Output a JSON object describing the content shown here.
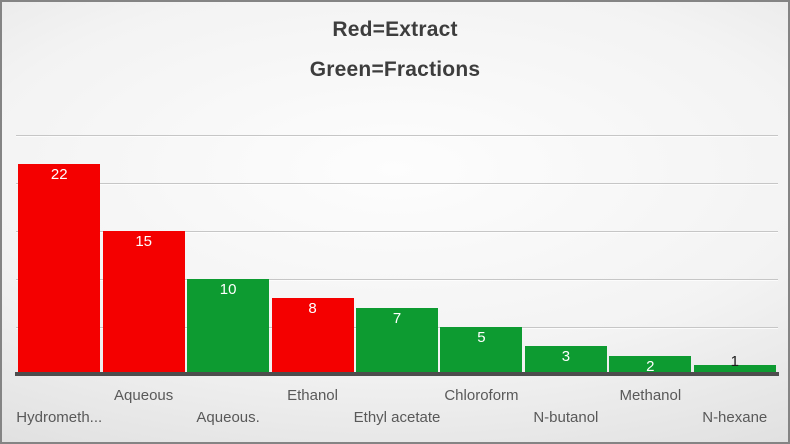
{
  "legend_header": {
    "line1": "Red=Extract",
    "line2": "Green=Fractions"
  },
  "chart_data": {
    "type": "bar",
    "title": "Red=Extract / Green=Fractions",
    "legend": [
      {
        "label": "Red=Extract",
        "series": "Extract",
        "color": "#f40000"
      },
      {
        "label": "Green=Fractions",
        "series": "Fractions",
        "color": "#0d9b31"
      }
    ],
    "legend_position": "top-center, shown as two stacked title lines",
    "categories": [
      "Hydrometh...",
      "Aqueous",
      "Aqueous.",
      "Ethanol",
      "Ethyl acetate",
      "Chloroform",
      "N-butanol",
      "Methanol",
      "N-hexane"
    ],
    "values": [
      22,
      15,
      10,
      8,
      7,
      5,
      3,
      2,
      1
    ],
    "bar_colors": [
      "#f40000",
      "#f40000",
      "#0d9b31",
      "#f40000",
      "#0d9b31",
      "#0d9b31",
      "#0d9b31",
      "#0d9b31",
      "#0d9b31"
    ],
    "value_labels": [
      "22",
      "15",
      "10",
      "8",
      "7",
      "5",
      "3",
      "2",
      "1"
    ],
    "value_label_colors": [
      "#ffffff",
      "#ffffff",
      "#ffffff",
      "#ffffff",
      "#ffffff",
      "#ffffff",
      "#ffffff",
      "#ffffff",
      "#1a1a1a"
    ],
    "value_label_placement": [
      "inside",
      "inside",
      "inside",
      "inside",
      "inside",
      "inside",
      "inside",
      "inside",
      "above"
    ],
    "x_label_rows": [
      "lower",
      "upper",
      "lower",
      "upper",
      "lower",
      "upper",
      "lower",
      "upper",
      "lower"
    ],
    "xlabel": "",
    "ylabel": "",
    "y_tick_labels_visible": false,
    "ylim": [
      0,
      25
    ],
    "grid_step": 5,
    "grid": "on",
    "colors": {
      "extract_red": "#f40000",
      "fractions_green": "#0d9b31",
      "axis_line": "#4d4d4d",
      "gridline": "#c6c6c6",
      "title_text": "#3d3d3d",
      "tick_text": "#595959"
    }
  }
}
